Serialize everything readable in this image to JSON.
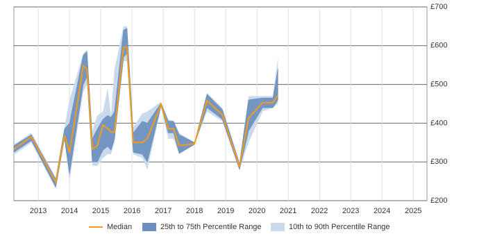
{
  "chart_data": {
    "type": "line",
    "x": [
      2012.22,
      2012.78,
      2013.56,
      2013.84,
      2014.0,
      2014.44,
      2014.56,
      2014.73,
      2014.89,
      2015.07,
      2015.22,
      2015.33,
      2015.44,
      2015.73,
      2015.84,
      2016.04,
      2016.33,
      2016.49,
      2016.93,
      2017.16,
      2017.33,
      2017.51,
      2018.0,
      2018.4,
      2018.89,
      2019.44,
      2019.73,
      2020.18,
      2020.51,
      2020.67
    ],
    "series": [
      {
        "name": "Median",
        "color": "#f39c1b",
        "values": [
          333,
          365,
          248,
          368,
          324,
          548,
          540,
          333,
          342,
          395,
          386,
          377,
          377,
          596,
          596,
          350,
          350,
          360,
          449,
          386,
          386,
          342,
          347,
          458,
          422,
          288,
          413,
          453,
          453,
          472
        ]
      },
      {
        "name": "25th to 75th Percentile Range",
        "color": "#6b8fbf",
        "low": [
          325,
          355,
          235,
          360,
          270,
          500,
          520,
          300,
          300,
          330,
          340,
          330,
          360,
          570,
          580,
          325,
          320,
          300,
          445,
          375,
          375,
          322,
          345,
          440,
          410,
          280,
          380,
          440,
          440,
          460
        ],
        "high": [
          342,
          370,
          255,
          385,
          400,
          575,
          585,
          360,
          385,
          410,
          420,
          415,
          430,
          640,
          645,
          375,
          405,
          400,
          452,
          405,
          405,
          370,
          350,
          475,
          435,
          295,
          460,
          465,
          465,
          540
        ]
      },
      {
        "name": "10th to 90th Percentile Range",
        "color": "#c9daec",
        "low": [
          318,
          350,
          230,
          355,
          250,
          480,
          500,
          290,
          290,
          310,
          320,
          320,
          350,
          560,
          560,
          320,
          310,
          280,
          440,
          360,
          360,
          320,
          345,
          430,
          405,
          280,
          350,
          430,
          440,
          450
        ],
        "high": [
          345,
          375,
          260,
          390,
          460,
          580,
          590,
          380,
          420,
          430,
          490,
          420,
          540,
          650,
          650,
          390,
          425,
          430,
          455,
          410,
          405,
          375,
          350,
          478,
          440,
          300,
          470,
          470,
          470,
          570
        ]
      }
    ],
    "xlim": [
      2012.22,
      2025.44
    ],
    "xticks": [
      2013,
      2014,
      2015,
      2016,
      2017,
      2018,
      2019,
      2020,
      2021,
      2022,
      2023,
      2024,
      2025
    ],
    "ylim": [
      200,
      700
    ],
    "yticks": [
      {
        "value": 200,
        "label": "£200"
      },
      {
        "value": 300,
        "label": "£300"
      },
      {
        "value": 400,
        "label": "£400"
      },
      {
        "value": 500,
        "label": "£500"
      },
      {
        "value": 600,
        "label": "£600"
      },
      {
        "value": 700,
        "label": "£700"
      }
    ],
    "grid": true
  }
}
